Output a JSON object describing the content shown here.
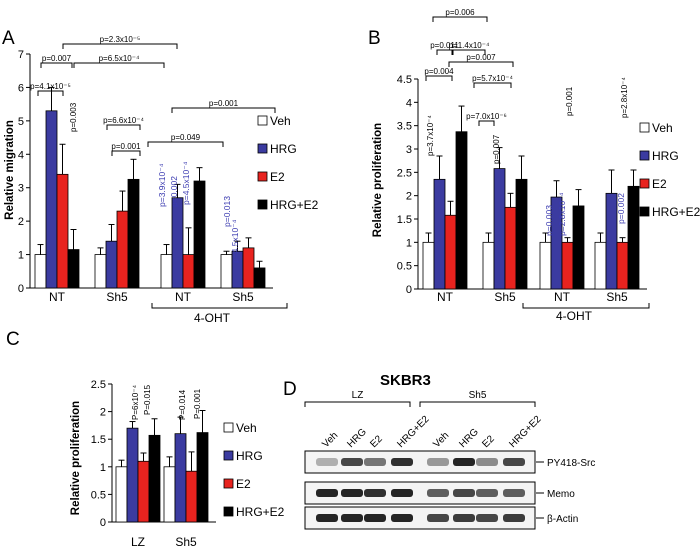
{
  "colors": {
    "Veh": "#ffffff",
    "HRG": "#3b3ba0",
    "E2": "#e8231f",
    "HRG+E2": "#000000",
    "pblue": "#3a3ab0"
  },
  "legend": [
    "Veh",
    "HRG",
    "E2",
    "HRG+E2"
  ],
  "panel_letters": [
    "A",
    "B",
    "C",
    "D"
  ],
  "chart_data": [
    {
      "id": "A",
      "type": "bar",
      "title": "",
      "ylabel": "Relative migration",
      "ylim": [
        0,
        7
      ],
      "yticks": [
        "0",
        "1",
        "2",
        "3",
        "4",
        "5",
        "6",
        "7"
      ],
      "groups": [
        "NT",
        "Sh5",
        "NT",
        "Sh5"
      ],
      "group_bracket_label": "4-OHT",
      "series": [
        {
          "name": "Veh",
          "values": [
            1.0,
            1.0,
            1.0,
            1.0
          ],
          "errors": [
            0.3,
            0.2,
            0.3,
            0.1
          ]
        },
        {
          "name": "HRG",
          "values": [
            5.3,
            1.4,
            2.7,
            1.1
          ],
          "errors": [
            0.7,
            0.5,
            0.4,
            0.3
          ]
        },
        {
          "name": "E2",
          "values": [
            3.4,
            2.3,
            1.0,
            1.2
          ],
          "errors": [
            0.9,
            0.6,
            0.8,
            0.3
          ]
        },
        {
          "name": "HRG+E2",
          "values": [
            1.15,
            3.25,
            3.2,
            0.6
          ],
          "errors": [
            0.6,
            0.6,
            0.4,
            0.2
          ]
        }
      ],
      "brackets": [
        {
          "label": "p=2.3x10⁻⁵"
        },
        {
          "label": "p=0.007"
        },
        {
          "label": "p=6.5x10⁻⁴"
        },
        {
          "label": "p=4.1x10⁻⁵"
        },
        {
          "label": "p=0.001"
        },
        {
          "label": "p=0.049"
        },
        {
          "label": "p=6.6x10⁻⁴"
        },
        {
          "label": "p=0.001"
        }
      ],
      "vlabels": [
        {
          "text": "p=0.003",
          "color": "black"
        },
        {
          "text": "p=3.9x10⁻⁴",
          "color": "blue"
        },
        {
          "text": "p=0.002",
          "color": "blue"
        },
        {
          "text": "p=4.5x10⁻⁴",
          "color": "blue"
        },
        {
          "text": "p=0.013",
          "color": "blue"
        },
        {
          "text": "p=4.5x10⁻⁴",
          "color": "blue"
        }
      ]
    },
    {
      "id": "B",
      "type": "bar",
      "title": "",
      "ylabel": "Relative proliferation",
      "ylim": [
        0,
        4.5
      ],
      "yticks": [
        "0",
        "0.5",
        "1",
        "1.5",
        "2",
        "2.5",
        "3",
        "3.5",
        "4",
        "4.5"
      ],
      "groups": [
        "NT",
        "Sh5",
        "NT",
        "Sh5"
      ],
      "group_bracket_label": "4-OHT",
      "series": [
        {
          "name": "Veh",
          "values": [
            1.0,
            1.0,
            1.0,
            1.0
          ],
          "errors": [
            0.2,
            0.2,
            0.2,
            0.2
          ]
        },
        {
          "name": "HRG",
          "values": [
            2.35,
            2.58,
            1.97,
            2.05
          ],
          "errors": [
            0.5,
            0.45,
            0.35,
            0.5
          ]
        },
        {
          "name": "E2",
          "values": [
            1.58,
            1.75,
            1.0,
            1.0
          ],
          "errors": [
            0.3,
            0.3,
            0.1,
            0.1
          ]
        },
        {
          "name": "HRG+E2",
          "values": [
            3.37,
            2.35,
            1.78,
            2.2
          ],
          "errors": [
            0.55,
            0.5,
            0.35,
            0.35
          ]
        }
      ],
      "brackets": [
        {
          "label": "p=0.006"
        },
        {
          "label": "p=0.011"
        },
        {
          "label": "p=1.4x10⁻⁴"
        },
        {
          "label": "p=0.004"
        },
        {
          "label": "p=0.007"
        },
        {
          "label": "p=5.7x10⁻⁴"
        },
        {
          "label": "p=7.0x10⁻⁶"
        }
      ],
      "vlabels": [
        {
          "text": "p=3.7x10⁻⁴",
          "color": "black"
        },
        {
          "text": "p=0.007",
          "color": "black"
        },
        {
          "text": "p=0.001",
          "color": "black"
        },
        {
          "text": "p=2.8x10⁻⁴",
          "color": "black"
        },
        {
          "text": "p=0.003",
          "color": "blue"
        },
        {
          "text": "p=2.8x10⁻⁴",
          "color": "blue"
        },
        {
          "text": "p=0.002",
          "color": "blue"
        }
      ]
    },
    {
      "id": "C",
      "type": "bar",
      "title": "SKBR3",
      "ylabel": "Relative proliferation",
      "ylim": [
        0,
        2.5
      ],
      "yticks": [
        "0",
        "0.5",
        "1",
        "1.5",
        "2",
        "2.5"
      ],
      "groups": [
        "LZ",
        "Sh5"
      ],
      "series": [
        {
          "name": "Veh",
          "values": [
            1.0,
            1.0
          ],
          "errors": [
            0.12,
            0.18
          ]
        },
        {
          "name": "HRG",
          "values": [
            1.7,
            1.6
          ],
          "errors": [
            0.12,
            0.3
          ]
        },
        {
          "name": "E2",
          "values": [
            1.1,
            0.92
          ],
          "errors": [
            0.15,
            0.35
          ]
        },
        {
          "name": "HRG+E2",
          "values": [
            1.57,
            1.62
          ],
          "errors": [
            0.3,
            0.4
          ]
        }
      ],
      "vlabels": [
        {
          "text": "P=6x10⁻⁴",
          "color": "black"
        },
        {
          "text": "P=0.015",
          "color": "black"
        },
        {
          "text": "P=0.014",
          "color": "black"
        },
        {
          "text": "P=0.001",
          "color": "black"
        }
      ]
    }
  ],
  "blot": {
    "title": "SKBR3",
    "groups": [
      "LZ",
      "Sh5"
    ],
    "lanes": [
      "Veh",
      "HRG",
      "E2",
      "HRG+E2",
      "Veh",
      "HRG",
      "E2",
      "HRG+E2"
    ],
    "rows": [
      "PY418-Src",
      "Memo",
      "β-Actin"
    ],
    "intensities": {
      "PY418-Src": [
        0.35,
        0.8,
        0.6,
        0.9,
        0.45,
        0.95,
        0.5,
        0.8
      ],
      "Memo": [
        0.95,
        0.95,
        0.9,
        0.95,
        0.7,
        0.8,
        0.7,
        0.7
      ],
      "β-Actin": [
        0.95,
        0.95,
        0.95,
        0.95,
        0.8,
        0.85,
        0.8,
        0.85
      ]
    }
  }
}
